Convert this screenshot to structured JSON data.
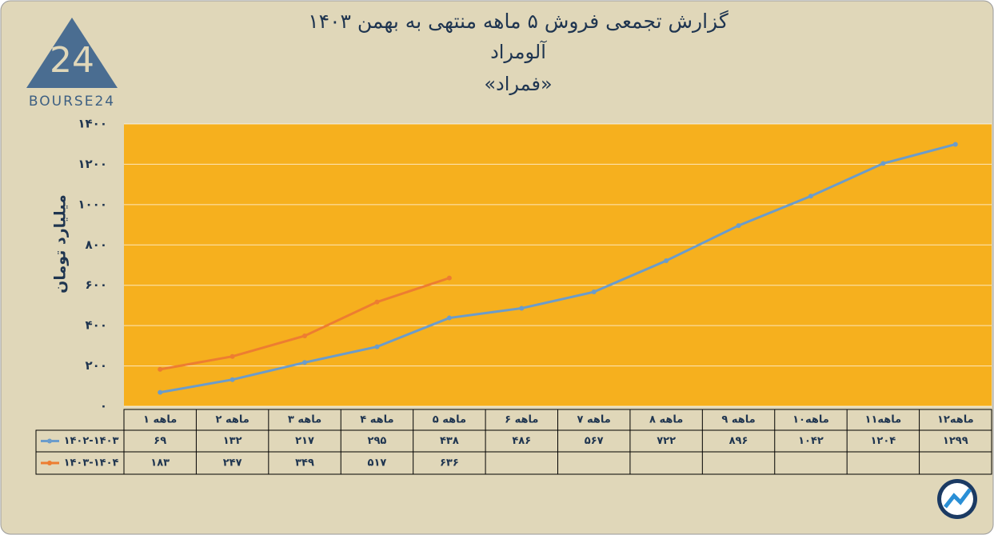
{
  "chart_data": {
    "type": "line",
    "title": "گزارش تجمعی فروش ۵ ماهه منتهی به بهمن ۱۴۰۳",
    "subtitle": "آلومراد",
    "symbol": "«فمراد»",
    "brand": "BOURSE24",
    "logo_mark": "24",
    "y_label": "میلیارد تومان",
    "categories": [
      "۱ ماهه",
      "۲ ماهه",
      "۳ ماهه",
      "۴ ماهه",
      "۵ ماهه",
      "۶ ماهه",
      "۷ ماهه",
      "۸ ماهه",
      "۹ ماهه",
      "۱۰ماهه",
      "۱۱ماهه",
      "۱۲ماهه"
    ],
    "series": [
      {
        "name": "۱۴۰۲-۱۴۰۳",
        "color": "#6b9ccb",
        "values": [
          69,
          132,
          217,
          295,
          438,
          486,
          567,
          722,
          896,
          1042,
          1204,
          1299
        ],
        "value_labels": [
          "۶۹",
          "۱۳۲",
          "۲۱۷",
          "۲۹۵",
          "۴۳۸",
          "۴۸۶",
          "۵۶۷",
          "۷۲۲",
          "۸۹۶",
          "۱۰۴۲",
          "۱۲۰۴",
          "۱۲۹۹"
        ]
      },
      {
        "name": "۱۴۰۳-۱۴۰۴",
        "color": "#ed7d31",
        "values": [
          183,
          247,
          349,
          517,
          636,
          null,
          null,
          null,
          null,
          null,
          null,
          null
        ],
        "value_labels": [
          "۱۸۳",
          "۲۴۷",
          "۳۴۹",
          "۵۱۷",
          "۶۳۶",
          null,
          null,
          null,
          null,
          null,
          null,
          null
        ]
      }
    ],
    "ylim": [
      0,
      1400
    ],
    "yticks": [
      {
        "value": 0,
        "label": "۰"
      },
      {
        "value": 200,
        "label": "۲۰۰"
      },
      {
        "value": 400,
        "label": "۴۰۰"
      },
      {
        "value": 600,
        "label": "۶۰۰"
      },
      {
        "value": 800,
        "label": "۸۰۰"
      },
      {
        "value": 1000,
        "label": "۱۰۰۰"
      },
      {
        "value": 1200,
        "label": "۱۲۰۰"
      },
      {
        "value": 1400,
        "label": "۱۴۰۰"
      }
    ],
    "grid": true,
    "plot_color": "#f6b01e"
  }
}
